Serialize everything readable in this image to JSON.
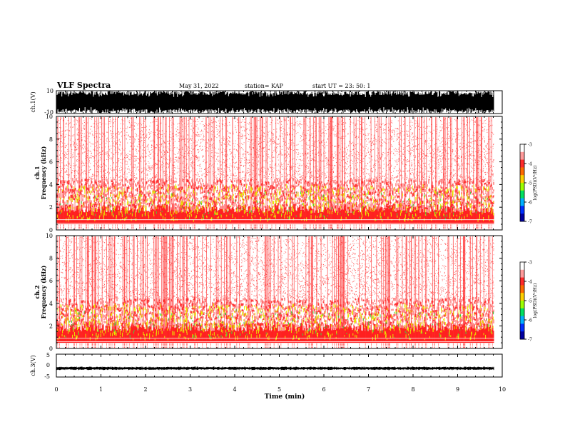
{
  "header": {
    "title": "VLF Spectra",
    "date": "May 31, 2022",
    "station": "station= KAP",
    "start": "start  UT  =   23: 50: 1"
  },
  "colorbar": {
    "label": "log(PSD)(V²/Hz)",
    "ticks": [
      "-3",
      "-4",
      "-5",
      "-6",
      "-7"
    ],
    "colors": [
      "#ffffff",
      "#ff9a9a",
      "#ff2a2a",
      "#ff6a00",
      "#ffd000",
      "#9cff00",
      "#00e060",
      "#00b0ff",
      "#0030ff",
      "#0000a0"
    ]
  },
  "chart_data": [
    {
      "type": "line",
      "title": "",
      "ylabel": "ch.1(V)",
      "ylim": [
        -10,
        10
      ],
      "yticks": [
        "10",
        "-10"
      ],
      "xlim": [
        0,
        10
      ],
      "series": [
        {
          "name": "",
          "color": "#000000",
          "values": "dense broadband signal filling most of range -10 to 10"
        }
      ]
    },
    {
      "type": "heatmap",
      "title": "",
      "ylabel": "ch.1 Frequency (kHz)",
      "ylim": [
        0,
        10
      ],
      "yticks": [
        "0",
        "2",
        "4",
        "6",
        "8",
        "10"
      ],
      "xlim": [
        0,
        10
      ],
      "note_levels": {
        "high_freq_limit_khz": 10,
        "active_band_khz": [
          0.5,
          4
        ]
      }
    },
    {
      "type": "heatmap",
      "title": "",
      "ylabel": "ch.2 Frequency (kHz)",
      "ylim": [
        0,
        10
      ],
      "yticks": [
        "0",
        "2",
        "4",
        "6",
        "8",
        "10"
      ],
      "xlim": [
        0,
        10
      ],
      "note_levels": {
        "high_freq_limit_khz": 10,
        "active_band_khz": [
          0.5,
          4
        ]
      }
    },
    {
      "type": "line",
      "title": "",
      "ylabel": "ch.3(V)",
      "ylim": [
        -5,
        5
      ],
      "yticks": [
        "5",
        "0",
        "-5"
      ],
      "xlim": [
        0,
        10
      ],
      "series": [
        {
          "name": "",
          "color": "#000000",
          "values": "narrow signal near -1.2 V"
        }
      ]
    }
  ],
  "xaxis": {
    "label": "Time (min)",
    "ticks": [
      "0",
      "1",
      "2",
      "3",
      "4",
      "5",
      "6",
      "7",
      "8",
      "9",
      "10"
    ],
    "data_end_min": 9.82
  }
}
